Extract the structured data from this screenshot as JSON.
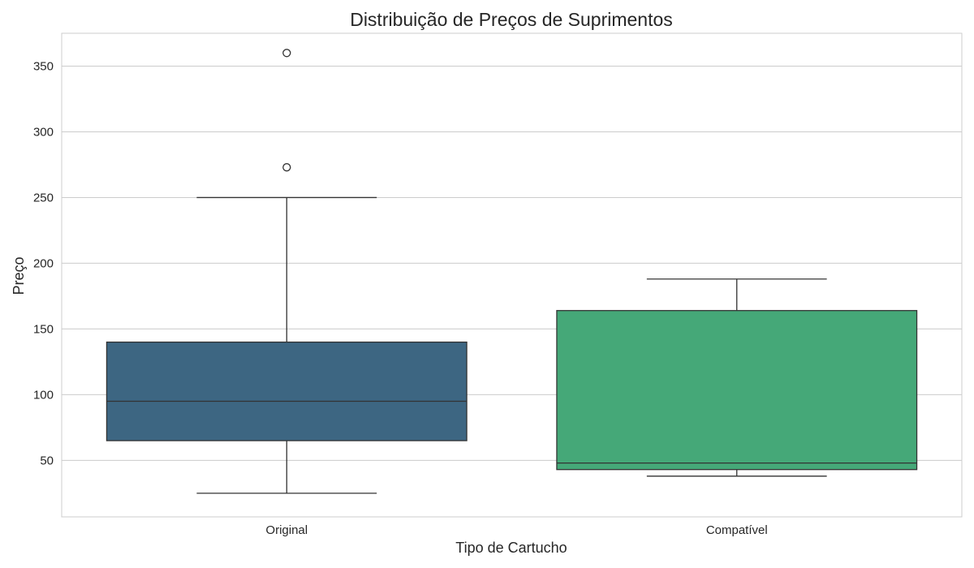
{
  "chart_data": {
    "type": "box",
    "title": "Distribuição de Preços de Suprimentos",
    "xlabel": "Tipo de Cartucho",
    "ylabel": "Preço",
    "ylim": [
      7,
      375
    ],
    "yticks": [
      50,
      100,
      150,
      200,
      250,
      300,
      350
    ],
    "grid": true,
    "categories": [
      "Original",
      "Compatível"
    ],
    "boxes": [
      {
        "category": "Original",
        "color": "#3d6682",
        "whisker_low": 25,
        "q1": 65,
        "median": 95,
        "q3": 140,
        "whisker_high": 250,
        "outliers": [
          273,
          360
        ]
      },
      {
        "category": "Compatível",
        "color": "#45a878",
        "whisker_low": 38,
        "q1": 43,
        "median": 48,
        "q3": 164,
        "whisker_high": 188,
        "outliers": []
      }
    ]
  }
}
